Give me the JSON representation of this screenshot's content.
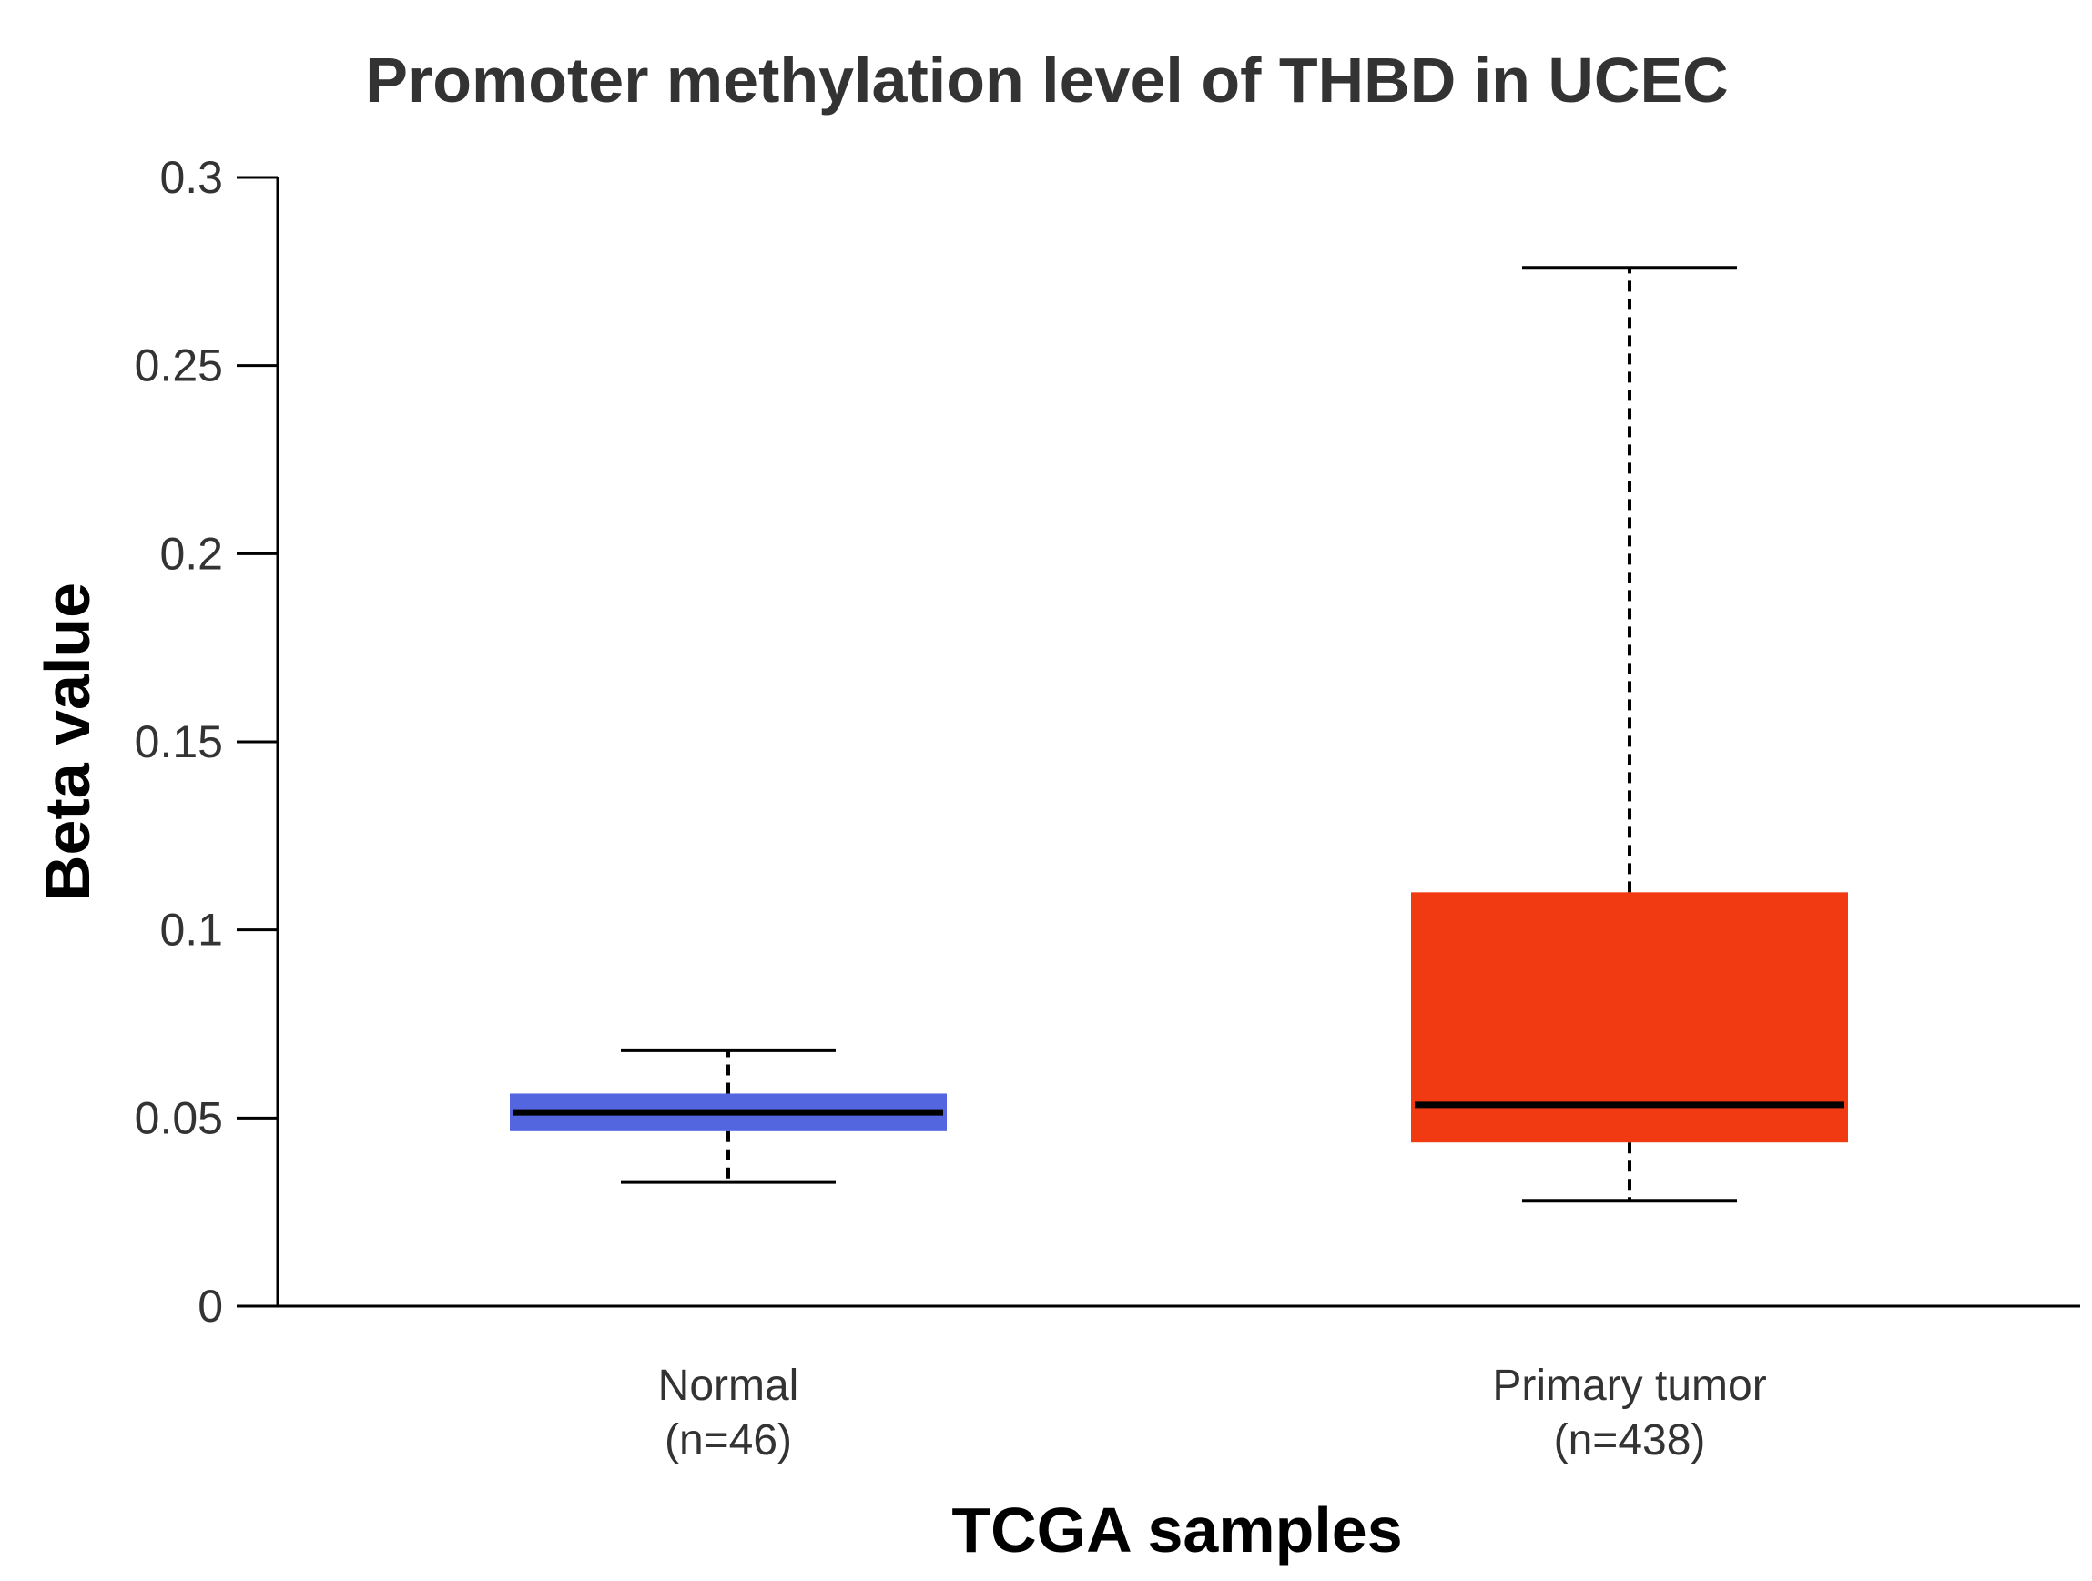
{
  "chart_data": {
    "type": "boxplot",
    "title": "Promoter methylation level of THBD in UCEC",
    "xlabel": "TCGA samples",
    "ylabel": "Beta value",
    "ylim": [
      0,
      0.3
    ],
    "yticks": [
      0,
      0.05,
      0.1,
      0.15,
      0.2,
      0.25,
      0.3
    ],
    "ytick_labels": [
      "0",
      "0.05",
      "0.1",
      "0.15",
      "0.2",
      "0.25",
      "0.3"
    ],
    "grid": false,
    "categories": [
      {
        "name": "Normal",
        "count_label": "(n=46)",
        "color": "#5466df",
        "whisker_min": 0.033,
        "q1": 0.0465,
        "median": 0.0515,
        "q3": 0.0565,
        "whisker_max": 0.068
      },
      {
        "name": "Primary tumor",
        "count_label": "(n=438)",
        "color": "#f23a12",
        "whisker_min": 0.028,
        "q1": 0.0435,
        "median": 0.0535,
        "q3": 0.11,
        "whisker_max": 0.276
      }
    ]
  }
}
